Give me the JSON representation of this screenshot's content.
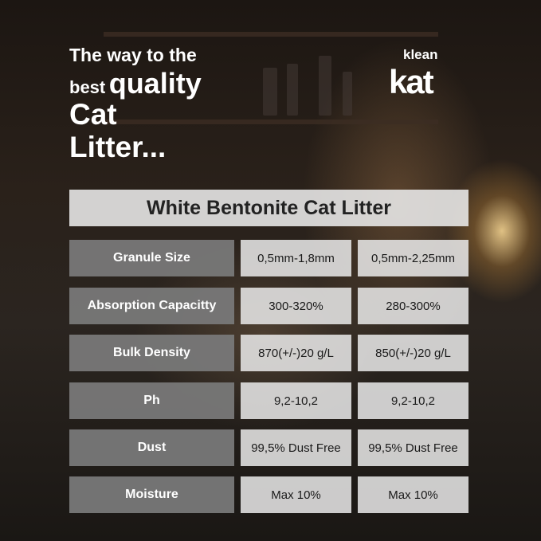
{
  "headline": {
    "line1": "The way to the",
    "line2_small": "best",
    "line2_big": "quality",
    "line3": "Cat",
    "line4": "Litter..."
  },
  "logo": {
    "top": "klean",
    "bottom": "kat"
  },
  "table": {
    "title": "White Bentonite Cat Litter",
    "rows": [
      {
        "label": "Granule Size",
        "values": [
          "0,5mm-1,8mm",
          "0,5mm-2,25mm"
        ]
      },
      {
        "label": "Absorption Capacitty",
        "values": [
          "300-320%",
          "280-300%"
        ]
      },
      {
        "label": "Bulk Density",
        "values": [
          "870(+/-)20 g/L",
          "850(+/-)20 g/L"
        ]
      },
      {
        "label": "Ph",
        "values": [
          "9,2-10,2",
          "9,2-10,2"
        ]
      },
      {
        "label": "Dust",
        "values": [
          "99,5% Dust Free",
          "99,5% Dust Free"
        ]
      },
      {
        "label": "Moisture",
        "values": [
          "Max 10%",
          "Max 10%"
        ]
      }
    ]
  },
  "colors": {
    "label_bg": "#787878",
    "value_bg": "#ebebeb",
    "text_light": "#ffffff",
    "text_dark": "#222222"
  }
}
